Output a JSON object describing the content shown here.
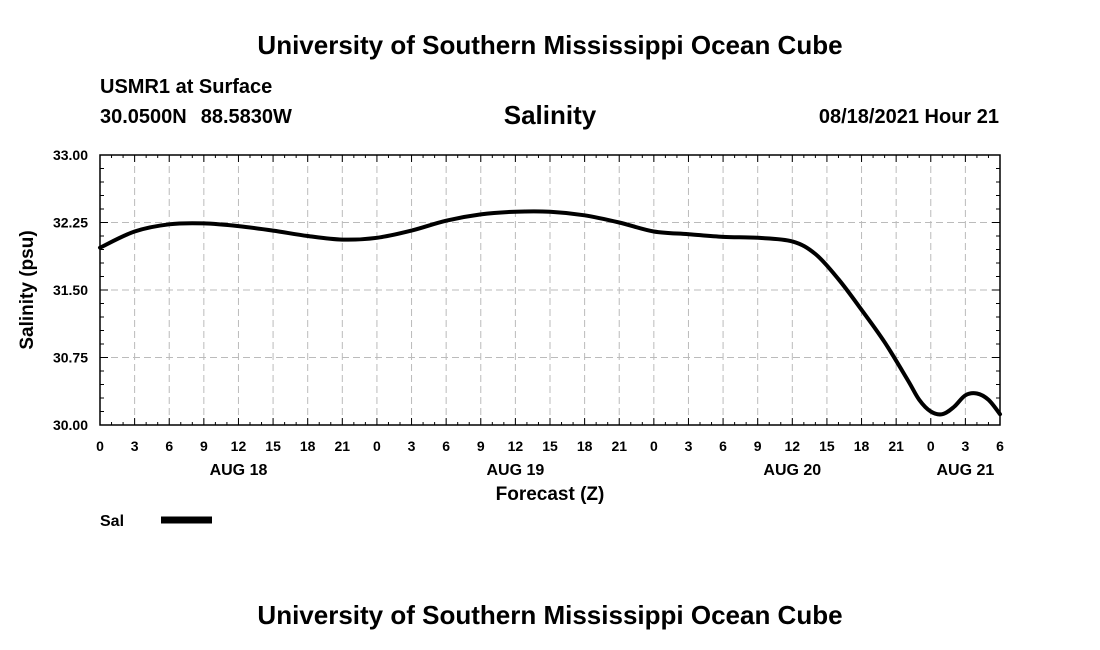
{
  "header": {
    "title": "University of Southern Mississippi Ocean Cube",
    "station": "USMR1 at Surface",
    "lat": "30.0500N",
    "lon": "88.5830W",
    "variable": "Salinity",
    "datetime": "08/18/2021 Hour 21"
  },
  "footer": {
    "title": "University of Southern Mississippi Ocean Cube"
  },
  "chart_data": {
    "type": "line",
    "ylabel": "Salinity (psu)",
    "xlabel": "Forecast (Z)",
    "ylim": [
      30.0,
      33.0
    ],
    "yticks": [
      "30.00",
      "30.75",
      "31.50",
      "32.25",
      "33.00"
    ],
    "xlim": [
      0,
      78
    ],
    "x_tick_hours": [
      0,
      3,
      6,
      9,
      12,
      15,
      18,
      21,
      24,
      27,
      30,
      33,
      36,
      39,
      42,
      45,
      48,
      51,
      54,
      57,
      60,
      63,
      66,
      69,
      72,
      75,
      78
    ],
    "x_tick_labels": [
      "0",
      "3",
      "6",
      "9",
      "12",
      "15",
      "18",
      "21",
      "0",
      "3",
      "6",
      "9",
      "12",
      "15",
      "18",
      "21",
      "0",
      "3",
      "6",
      "9",
      "12",
      "15",
      "18",
      "21",
      "0",
      "3",
      "6"
    ],
    "dates": [
      {
        "label": "AUG 18",
        "hour": 12
      },
      {
        "label": "AUG 19",
        "hour": 36
      },
      {
        "label": "AUG 20",
        "hour": 60
      },
      {
        "label": "AUG 21",
        "hour": 75
      }
    ],
    "grid": true,
    "legend_position": "bottom-left",
    "series": [
      {
        "name": "Sal",
        "color": "#000000",
        "x": [
          0,
          3,
          6,
          9,
          12,
          15,
          18,
          21,
          24,
          27,
          30,
          33,
          36,
          39,
          42,
          45,
          48,
          51,
          54,
          57,
          60,
          62,
          64,
          66,
          68,
          70,
          71,
          72,
          73,
          74,
          75,
          76,
          77,
          78
        ],
        "y": [
          31.97,
          32.15,
          32.23,
          32.24,
          32.21,
          32.16,
          32.1,
          32.06,
          32.08,
          32.16,
          32.27,
          32.34,
          32.37,
          32.37,
          32.33,
          32.25,
          32.15,
          32.12,
          32.09,
          32.08,
          32.04,
          31.9,
          31.62,
          31.28,
          30.92,
          30.5,
          30.28,
          30.15,
          30.12,
          30.2,
          30.33,
          30.35,
          30.28,
          30.12
        ]
      }
    ]
  }
}
